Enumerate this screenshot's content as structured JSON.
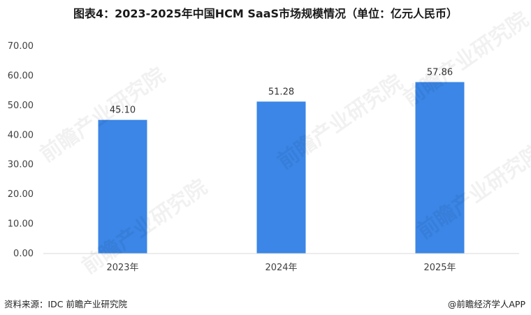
{
  "title": "图表4：2023-2025年中国HCM SaaS市场规模情况（单位：亿元人民币）",
  "source": "资料来源：IDC  前瞻产业研究院",
  "brand": "@前瞻经济学人APP",
  "watermark": "前瞻产业研究院",
  "colors": {
    "bar": "#3b86e6",
    "axis": "#d9d9d9",
    "text": "#404040"
  },
  "chart_data": {
    "type": "bar",
    "categories": [
      "2023年",
      "2024年",
      "2025年"
    ],
    "values": [
      45.1,
      51.28,
      57.86
    ],
    "value_labels": [
      "45.10",
      "51.28",
      "57.86"
    ],
    "yticks": [
      "0.00",
      "10.00",
      "20.00",
      "30.00",
      "40.00",
      "50.00",
      "60.00",
      "70.00"
    ],
    "ylim": [
      0,
      70
    ],
    "grid": false,
    "legend": "none"
  }
}
